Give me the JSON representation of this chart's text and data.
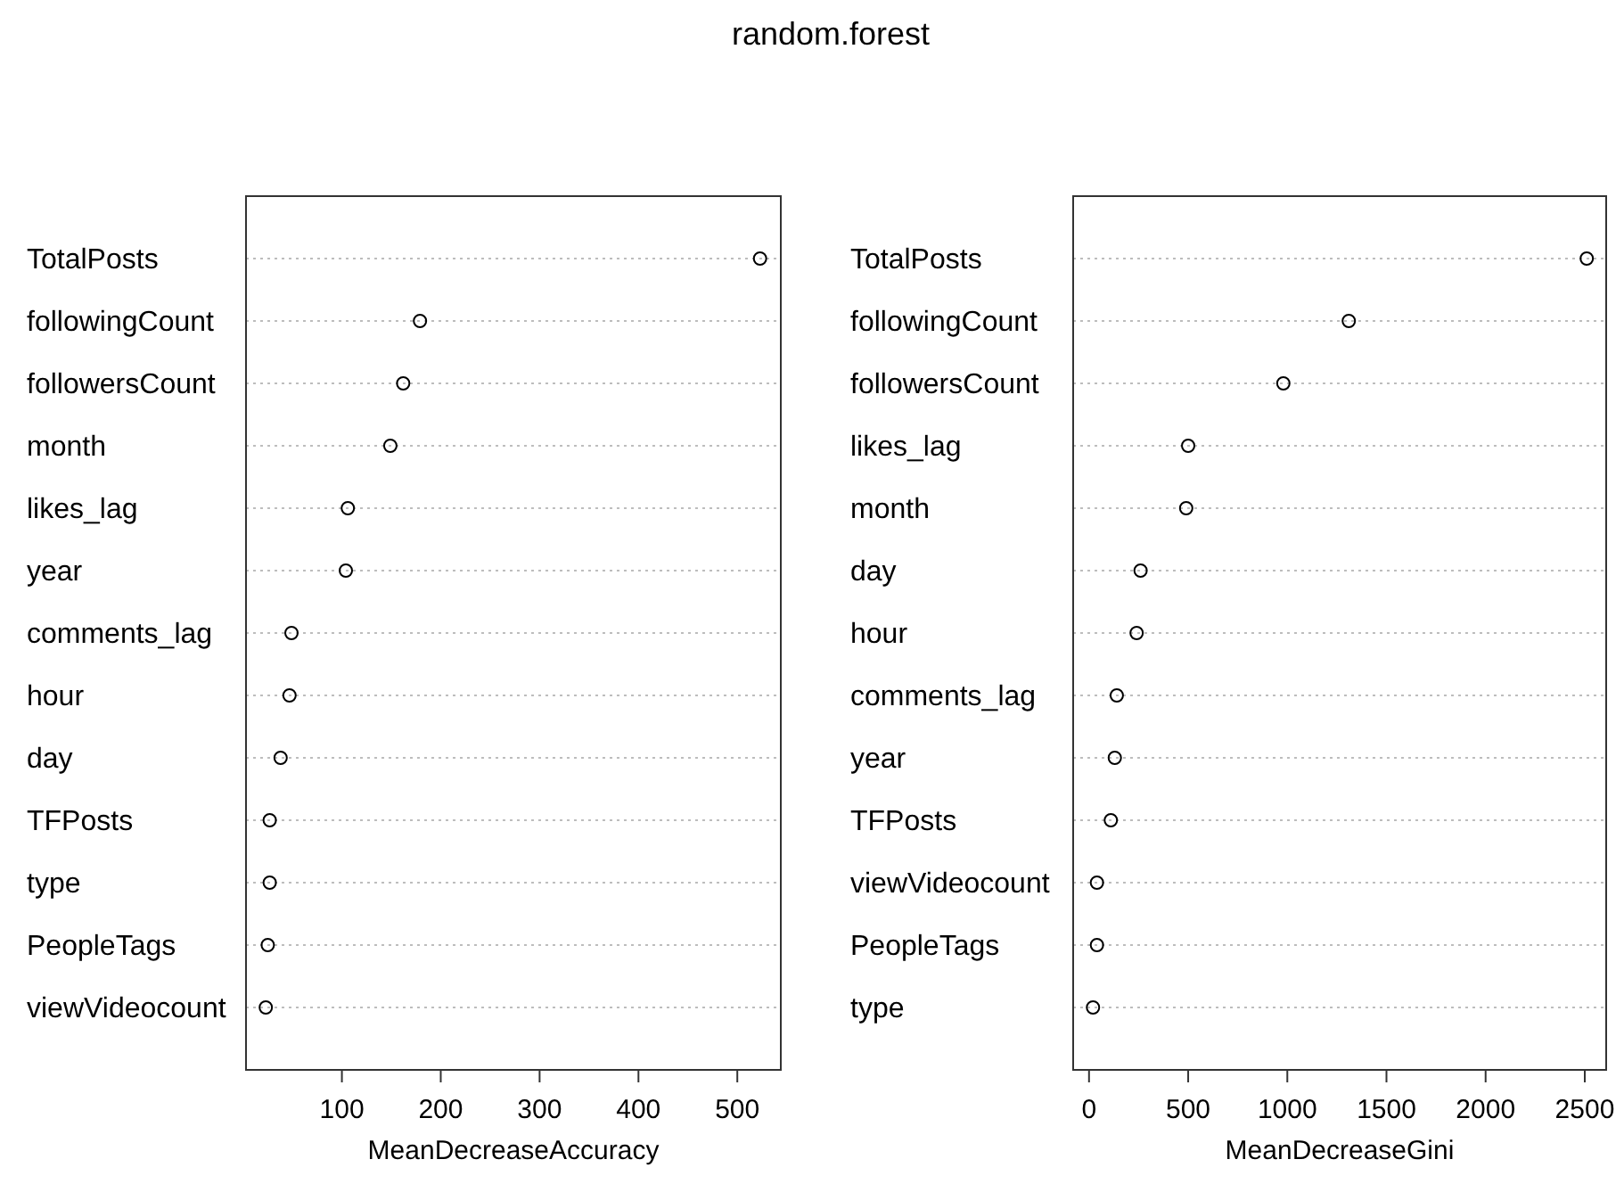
{
  "chart_data": [
    {
      "type": "scatter",
      "title": "random.forest",
      "orientation": "horizontal",
      "xlabel": "MeanDecreaseAccuracy",
      "categories": [
        "TotalPosts",
        "followingCount",
        "followersCount",
        "month",
        "likes_lag",
        "year",
        "comments_lag",
        "hour",
        "day",
        "TFPosts",
        "type",
        "PeopleTags",
        "viewVideocount"
      ],
      "series": [
        {
          "color": "#000000",
          "values": [
            523,
            179,
            162,
            149,
            106,
            104,
            49,
            47,
            38,
            27,
            27,
            25,
            23
          ]
        }
      ],
      "xlim": [
        3,
        544
      ],
      "xticks": [
        100,
        200,
        300,
        400,
        500
      ],
      "grid": "y",
      "marker": "circle"
    },
    {
      "type": "scatter",
      "orientation": "horizontal",
      "xlabel": "MeanDecreaseGini",
      "categories": [
        "TotalPosts",
        "followingCount",
        "followersCount",
        "likes_lag",
        "month",
        "day",
        "hour",
        "comments_lag",
        "year",
        "TFPosts",
        "viewVideocount",
        "PeopleTags",
        "type"
      ],
      "series": [
        {
          "color": "#000000",
          "values": [
            2510,
            1310,
            980,
            500,
            490,
            260,
            240,
            140,
            130,
            110,
            40,
            40,
            20
          ]
        }
      ],
      "xlim": [
        -80,
        2608
      ],
      "xticks": [
        0,
        500,
        1000,
        1500,
        2000,
        2500
      ],
      "grid": "y",
      "marker": "circle"
    }
  ]
}
